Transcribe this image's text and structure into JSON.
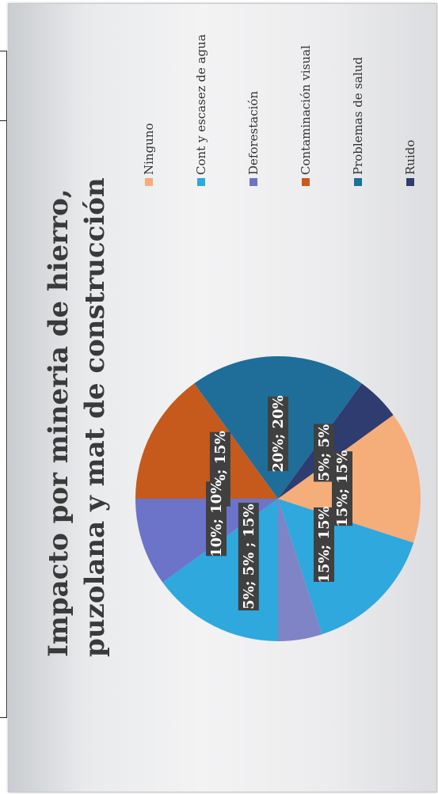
{
  "chart_data": {
    "type": "pie",
    "title_lines": [
      "Impacto por mineria de hierro,",
      "puzolana y mat de construcción"
    ],
    "legend": [
      {
        "label": "Ninguno",
        "color": "#f5ad7a"
      },
      {
        "label": "Cont y escasez de agua",
        "color": "#2fa8dd"
      },
      {
        "label": "Deforestación",
        "color": "#6c74c9"
      },
      {
        "label": "Contaminación visual",
        "color": "#c55a1c"
      },
      {
        "label": "Problemas de salud",
        "color": "#1f6e9a"
      },
      {
        "label": "Ruido",
        "color": "#2e3c70"
      }
    ],
    "slices": [
      {
        "category": "Contaminación visual",
        "value": 15,
        "color": "#c55a1c",
        "label": "15%; 15%"
      },
      {
        "category": "Problemas de salud",
        "value": 20,
        "color": "#1f6e9a",
        "label": "20%; 20%"
      },
      {
        "category": "Ruido",
        "value": 5,
        "color": "#2e3c70",
        "label": "5%; 5%"
      },
      {
        "category": "Ninguno",
        "value": 15,
        "color": "#f5ad7a",
        "label": "15%; 15%"
      },
      {
        "category": "Cont y escasez de agua",
        "value": 15,
        "color": "#2fa8dd",
        "label": "15%; 15%"
      },
      {
        "category": "Deforestación",
        "value": 5,
        "color": "#7f84c6",
        "label": ""
      },
      {
        "category": "Cont y escasez de agua",
        "value": 15,
        "color": "#2fa8dd",
        "label": "5%; 5% ; 15%"
      },
      {
        "category": "Deforestación",
        "value": 10,
        "color": "#6c74c9",
        "label": "10%; 10%"
      }
    ]
  }
}
